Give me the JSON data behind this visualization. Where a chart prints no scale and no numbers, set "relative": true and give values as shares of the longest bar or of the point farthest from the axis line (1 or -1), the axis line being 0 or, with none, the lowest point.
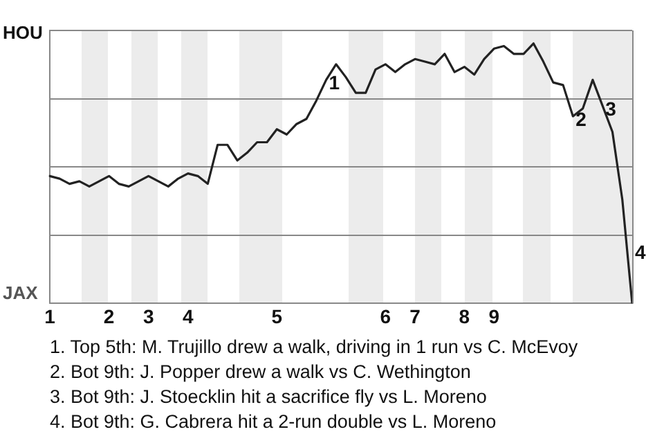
{
  "chart_data": {
    "type": "line",
    "relative": true,
    "categories": [
      "1",
      null,
      null,
      null,
      null,
      null,
      "2",
      null,
      null,
      null,
      "3",
      null,
      null,
      null,
      "4",
      null,
      null,
      null,
      null,
      null,
      null,
      null,
      null,
      "5",
      null,
      null,
      null,
      null,
      null,
      null,
      null,
      null,
      null,
      null,
      "6",
      null,
      null,
      "7",
      null,
      null,
      null,
      null,
      "8",
      null,
      null,
      "9",
      null,
      null,
      null,
      null,
      null,
      null,
      null,
      null,
      null,
      null,
      null,
      null,
      null,
      null
    ],
    "series": [
      {
        "color": "#222222",
        "values": [
          0.49,
          0.48,
          0.46,
          0.47,
          0.45,
          0.47,
          0.49,
          0.46,
          0.45,
          0.47,
          0.49,
          0.47,
          0.45,
          0.48,
          0.5,
          0.49,
          0.46,
          0.61,
          0.61,
          0.55,
          0.58,
          0.62,
          0.62,
          0.67,
          0.65,
          0.69,
          0.71,
          0.78,
          0.86,
          0.92,
          0.87,
          0.81,
          0.81,
          0.9,
          0.92,
          0.89,
          0.92,
          0.94,
          0.93,
          0.92,
          0.96,
          0.89,
          0.91,
          0.88,
          0.94,
          0.98,
          0.99,
          0.96,
          0.96,
          1,
          0.93,
          0.85,
          0.84,
          0.72,
          0.75,
          0.86,
          0.76,
          0.66,
          0.4,
          0
        ]
      }
    ],
    "grid": "y",
    "legend": false,
    "marker": "none",
    "line_style": "solid",
    "annotations": [
      "HOU",
      "JAX",
      "4",
      {
        "text": "1",
        "y": 0.86
      },
      {
        "text": "2",
        "y": 0.72
      },
      {
        "text": "3",
        "y": 0.76
      },
      "1. Top 5th: M. Trujillo drew a walk, driving in 1 run vs C. McEvoy",
      "2. Bot 9th: J. Popper drew a walk vs C. Wethington",
      "3. Bot 9th: J. Stoecklin hit a sacrifice fly vs L. Moreno",
      "4. Bot 9th: G. Cabrera hit a 2-run double vs L. Moreno"
    ]
  }
}
